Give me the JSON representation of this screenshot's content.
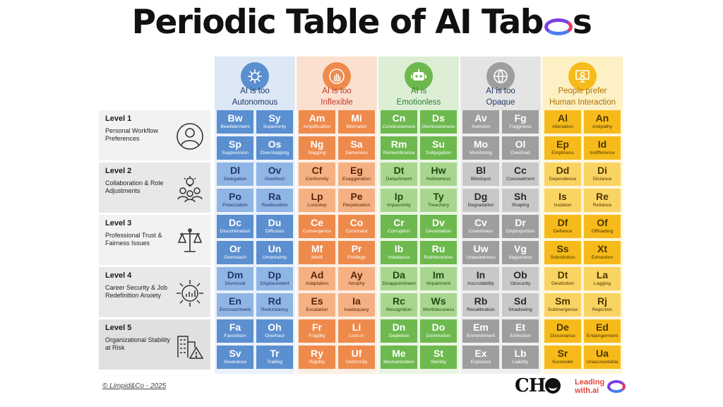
{
  "title": "Periodic Table of AI Taboos",
  "title_main": "Periodic Table of AI Tab",
  "title_tail": "s",
  "columns": [
    {
      "label_line1": "AI is too",
      "label_line2": "Autonomous",
      "icon": "brain-circuit-icon",
      "color_header": "#dce8f6",
      "color_col": "#eaf1fa",
      "color_dark": "#5b8fd0",
      "color_light": "#8fb5e5",
      "text_color": "#1f3864",
      "title_color": "#1f3864"
    },
    {
      "label_line1": "AI is too",
      "label_line2": "Inflexible",
      "icon": "hand-stop-icon",
      "color_header": "#fbe0cf",
      "color_col": "#fdeee4",
      "color_dark": "#ee8a4c",
      "color_light": "#f5b183",
      "text_color": "#5c2408",
      "title_color": "#c0392b"
    },
    {
      "label_line1": "AI is",
      "label_line2": "Emotionless",
      "icon": "robot-icon",
      "color_header": "#dcefd4",
      "color_col": "#eaf5e4",
      "color_dark": "#6db94e",
      "color_light": "#a8d68f",
      "text_color": "#1e4d12",
      "title_color": "#2e7d32"
    },
    {
      "label_line1": "AI is too",
      "label_line2": "Opaque",
      "icon": "globe-eye-icon",
      "color_header": "#e4e4e4",
      "color_col": "#efefef",
      "color_dark": "#9e9e9e",
      "color_light": "#c8c8c8",
      "text_color": "#2a2a2a",
      "title_color": "#1f3864"
    },
    {
      "label_line1": "People prefer",
      "label_line2": "Human Interaction",
      "icon": "person-screen-icon",
      "color_header": "#fdf0c4",
      "color_col": "#fef6dc",
      "color_dark": "#f6bb1b",
      "color_light": "#fad463",
      "text_color": "#4d3500",
      "title_color": "#b07000"
    }
  ],
  "levels": [
    {
      "title": "Level 1",
      "desc": "Personal Workflow Preferences",
      "icon": "person-icon"
    },
    {
      "title": "Level 2",
      "desc": "Collaboration & Role Adjustments",
      "icon": "team-idea-icon"
    },
    {
      "title": "Level 3",
      "desc": "Professional Trust & Fairness Issues",
      "icon": "scales-icon"
    },
    {
      "title": "Level 4",
      "desc": "Career Security & Job Redefinition Anxiety",
      "icon": "chart-arrows-icon"
    },
    {
      "title": "Level 5",
      "desc": "Organizational Stability at Risk",
      "icon": "building-warning-icon"
    }
  ],
  "rows": [
    [
      [
        "Bw",
        "Bewilderment"
      ],
      [
        "Sy",
        "Superiority"
      ],
      [
        "Am",
        "Amplification"
      ],
      [
        "Mi",
        "Mismatch"
      ],
      [
        "Cn",
        "Condescension"
      ],
      [
        "Ds",
        "Dismissiveness"
      ],
      [
        "Av",
        "Aversion"
      ],
      [
        "Fg",
        "Fogginess"
      ],
      [
        "Al",
        "Alienation"
      ],
      [
        "An",
        "Antipathy"
      ]
    ],
    [
      [
        "Sp",
        "Suppression"
      ],
      [
        "Os",
        "Overstepping"
      ],
      [
        "Ng",
        "Nagging"
      ],
      [
        "Sa",
        "Sameness"
      ],
      [
        "Rm",
        "Remembrance"
      ],
      [
        "Su",
        "Subjugation"
      ],
      [
        "Mo",
        "Monitoring"
      ],
      [
        "Ol",
        "Overload"
      ],
      [
        "Ep",
        "Emptiness"
      ],
      [
        "Id",
        "Indifference"
      ]
    ],
    [
      [
        "Dl",
        "Delegation"
      ],
      [
        "Ov",
        "Overtrust"
      ],
      [
        "Cf",
        "Conformity"
      ],
      [
        "Eg",
        "Exaggeration"
      ],
      [
        "Dt",
        "Detachment"
      ],
      [
        "Hw",
        "Hollowness"
      ],
      [
        "Bl",
        "Blindspot"
      ],
      [
        "Cc",
        "Concealment"
      ],
      [
        "Dd",
        "Dependence"
      ],
      [
        "Di",
        "Distance"
      ]
    ],
    [
      [
        "Po",
        "Polarization"
      ],
      [
        "Ra",
        "Reallocation"
      ],
      [
        "Lp",
        "Lockstep"
      ],
      [
        "Pe",
        "Perpetuation"
      ],
      [
        "Ip",
        "Impassivity"
      ],
      [
        "Ty",
        "Treachery"
      ],
      [
        "Dg",
        "Degradation"
      ],
      [
        "Sh",
        "Shaping"
      ],
      [
        "Is",
        "Isolation"
      ],
      [
        "Re",
        "Reliance"
      ]
    ],
    [
      [
        "Dc",
        "Discrimination"
      ],
      [
        "Du",
        "Diffusion"
      ],
      [
        "Ce",
        "Convergence"
      ],
      [
        "Co",
        "Constraint"
      ],
      [
        "Cr",
        "Corruption"
      ],
      [
        "Dv",
        "Devastation"
      ],
      [
        "Cv",
        "Covertness"
      ],
      [
        "Dr",
        "Disproportion"
      ],
      [
        "Df",
        "Defiance"
      ],
      [
        "Of",
        "Offloading"
      ]
    ],
    [
      [
        "Or",
        "Overreach"
      ],
      [
        "Un",
        "Uncertainty"
      ],
      [
        "Mf",
        "Misfit"
      ],
      [
        "Pr",
        "Privilege"
      ],
      [
        "Ib",
        "Imbalance"
      ],
      [
        "Ru",
        "Ruthlessness"
      ],
      [
        "Uw",
        "Unawareness"
      ],
      [
        "Vg",
        "Vagueness"
      ],
      [
        "Ss",
        "Substitution"
      ],
      [
        "Xt",
        "Extraction"
      ]
    ],
    [
      [
        "Dm",
        "Dismissal"
      ],
      [
        "Dp",
        "Displacement"
      ],
      [
        "Ad",
        "Adaptation"
      ],
      [
        "Ay",
        "Atrophy"
      ],
      [
        "Da",
        "Disappointment"
      ],
      [
        "Im",
        "Impairment"
      ],
      [
        "In",
        "Inscrutability"
      ],
      [
        "Ob",
        "Obscurity"
      ],
      [
        "Dt",
        "Destitution"
      ],
      [
        "La",
        "Lagging"
      ]
    ],
    [
      [
        "En",
        "Encroachment"
      ],
      [
        "Rd",
        "Redundancy"
      ],
      [
        "Es",
        "Escalation"
      ],
      [
        "Ia",
        "Inadequacy"
      ],
      [
        "Rc",
        "Recognition"
      ],
      [
        "Ws",
        "Worthlessness"
      ],
      [
        "Rb",
        "Recalibration"
      ],
      [
        "Sd",
        "Shadowing"
      ],
      [
        "Sm",
        "Submergence"
      ],
      [
        "Rj",
        "Rejection"
      ]
    ],
    [
      [
        "Fa",
        "Favoritism"
      ],
      [
        "Oh",
        "Overhaul"
      ],
      [
        "Fr",
        "Fragility"
      ],
      [
        "Li",
        "Lock-in"
      ],
      [
        "Dn",
        "Depletion"
      ],
      [
        "Do",
        "Domination"
      ],
      [
        "Em",
        "Enmeshment"
      ],
      [
        "Et",
        "Extinction"
      ],
      [
        "De",
        "Dissonance"
      ],
      [
        "Ed",
        "Endangerment"
      ]
    ],
    [
      [
        "Sv",
        "Severance"
      ],
      [
        "Tr",
        "Trailing"
      ],
      [
        "Ry",
        "Rigidity"
      ],
      [
        "Uf",
        "Uniformity"
      ],
      [
        "Me",
        "Mechanization"
      ],
      [
        "St",
        "Sterility"
      ],
      [
        "Ex",
        "Exposure"
      ],
      [
        "Lb",
        "Liability"
      ],
      [
        "Sr",
        "Surrender"
      ],
      [
        "Ua",
        "Unaccountable"
      ]
    ]
  ],
  "footer": {
    "copyright": "© Limpid&Co - 2025",
    "brand_cho": "CH",
    "brand_leading_1": "Leading",
    "brand_leading_2": "with.ai"
  }
}
